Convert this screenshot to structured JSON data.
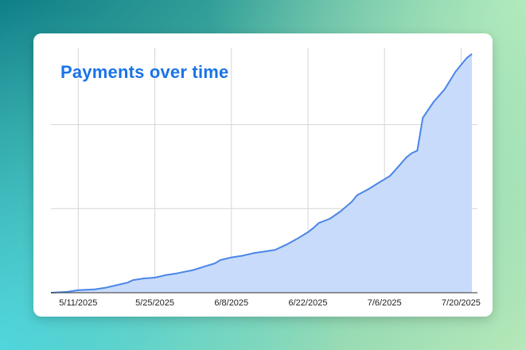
{
  "chart_data": {
    "type": "area",
    "title": "Payments over time",
    "xlabel": "",
    "ylabel": "",
    "x_tick_labels": [
      "5/11/2025",
      "5/25/2025",
      "6/8/2025",
      "6/22/2025",
      "7/6/2025",
      "7/20/2025"
    ],
    "x_tick_dates": [
      "2025-05-11",
      "2025-05-25",
      "2025-06-08",
      "2025-06-22",
      "2025-07-06",
      "2025-07-20"
    ],
    "xlim": [
      "2025-05-06",
      "2025-07-23"
    ],
    "ylim": [
      0,
      280
    ],
    "y_gridlines": [
      0,
      100,
      200
    ],
    "y_tick_labels_visible": false,
    "grid": true,
    "legend": "none",
    "series": [
      {
        "color": "#4a86e8",
        "fill_color": "#c9dbfa",
        "points": [
          [
            "2025-05-06",
            0
          ],
          [
            "2025-05-09",
            1
          ],
          [
            "2025-05-11",
            3
          ],
          [
            "2025-05-14",
            4
          ],
          [
            "2025-05-16",
            6
          ],
          [
            "2025-05-18",
            9
          ],
          [
            "2025-05-20",
            12
          ],
          [
            "2025-05-21",
            15
          ],
          [
            "2025-05-23",
            17
          ],
          [
            "2025-05-25",
            18
          ],
          [
            "2025-05-27",
            21
          ],
          [
            "2025-05-29",
            23
          ],
          [
            "2025-06-01",
            27
          ],
          [
            "2025-06-03",
            31
          ],
          [
            "2025-06-05",
            35
          ],
          [
            "2025-06-06",
            39
          ],
          [
            "2025-06-08",
            42
          ],
          [
            "2025-06-10",
            44
          ],
          [
            "2025-06-12",
            47
          ],
          [
            "2025-06-14",
            49
          ],
          [
            "2025-06-16",
            51
          ],
          [
            "2025-06-18",
            57
          ],
          [
            "2025-06-20",
            64
          ],
          [
            "2025-06-22",
            72
          ],
          [
            "2025-06-23",
            77
          ],
          [
            "2025-06-24",
            83
          ],
          [
            "2025-06-26",
            88
          ],
          [
            "2025-06-28",
            97
          ],
          [
            "2025-06-30",
            108
          ],
          [
            "2025-07-01",
            116
          ],
          [
            "2025-07-03",
            123
          ],
          [
            "2025-07-05",
            131
          ],
          [
            "2025-07-06",
            135
          ],
          [
            "2025-07-07",
            139
          ],
          [
            "2025-07-08",
            146
          ],
          [
            "2025-07-10",
            161
          ],
          [
            "2025-07-11",
            166
          ],
          [
            "2025-07-12",
            169
          ],
          [
            "2025-07-13",
            208
          ],
          [
            "2025-07-15",
            227
          ],
          [
            "2025-07-17",
            242
          ],
          [
            "2025-07-19",
            263
          ],
          [
            "2025-07-21",
            279
          ],
          [
            "2025-07-22",
            284
          ]
        ]
      }
    ]
  }
}
